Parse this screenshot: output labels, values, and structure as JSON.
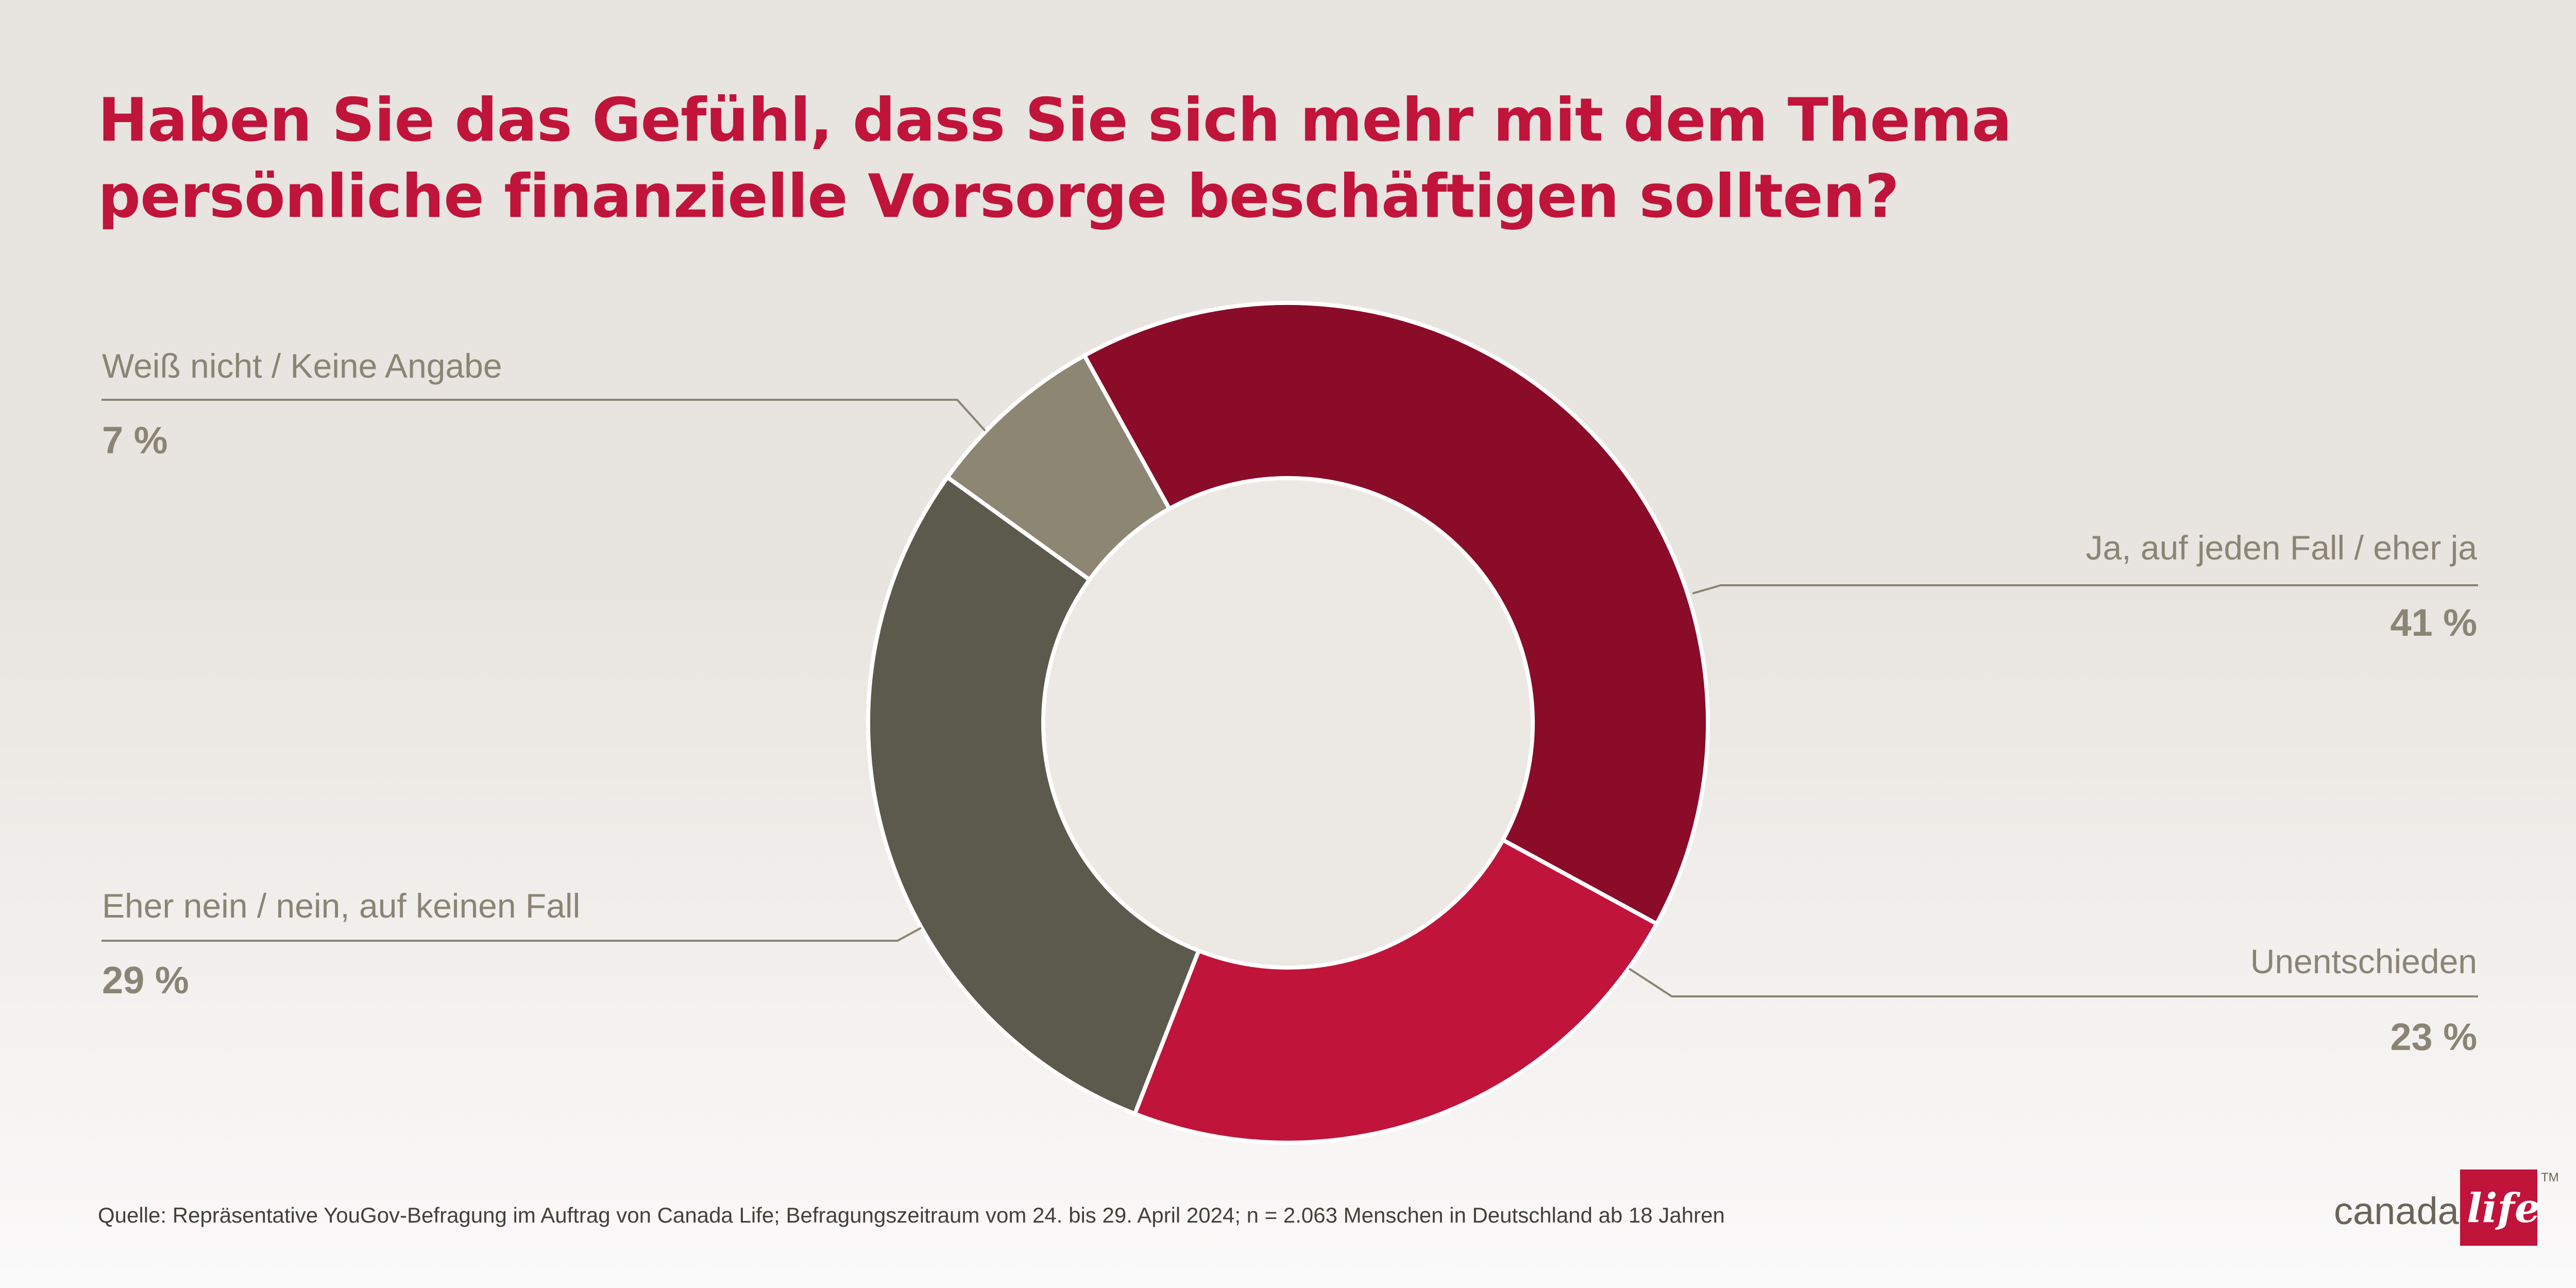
{
  "title": "Haben Sie das Gefühl, dass Sie sich mehr mit dem Thema persönliche finanzielle Vorsorge beschäftigen sollten?",
  "chart_data": {
    "type": "pie",
    "variant": "donut",
    "unit": "%",
    "slices": [
      {
        "label": "Ja, auf jeden Fall / eher ja",
        "value": 41,
        "display": "41 %",
        "color": "#8a0c29"
      },
      {
        "label": "Unentschieden",
        "value": 23,
        "display": "23 %",
        "color": "#c0143a"
      },
      {
        "label": "Eher nein / nein, auf keinen Fall",
        "value": 29,
        "display": "29 %",
        "color": "#5b5a4c"
      },
      {
        "label": "Weiß nicht / Keine Angabe",
        "value": 7,
        "display": "7 %",
        "color": "#8c8672"
      }
    ]
  },
  "source": "Quelle: Repräsentative YouGov-Befragung im Auftrag von Canada Life; Befragungszeitraum vom 24. bis 29. April 2024; n = 2.063 Menschen in Deutschland ab 18 Jahren",
  "logo": {
    "word": "canada",
    "script": "life",
    "trademark": "TM",
    "brand_color": "#c0143a"
  },
  "colors": {
    "title": "#c0143a",
    "label": "#8a8574",
    "leader_line": "#8a8574"
  }
}
